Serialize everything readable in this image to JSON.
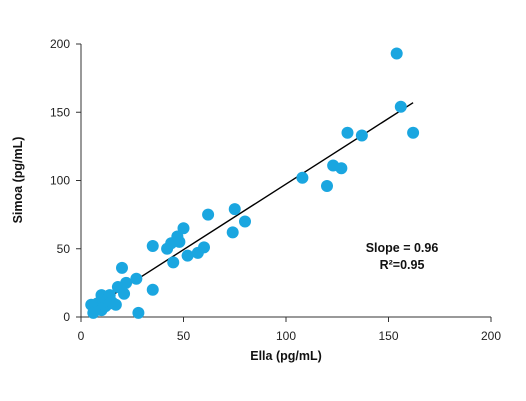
{
  "chart_data": {
    "type": "scatter",
    "xlabel": "Ella (pg/mL)",
    "ylabel": "Simoa (pg/mL)",
    "xlim": [
      0,
      200
    ],
    "ylim": [
      0,
      200
    ],
    "x_ticks": [
      0,
      50,
      100,
      150,
      200
    ],
    "y_ticks": [
      0,
      50,
      100,
      150,
      200
    ],
    "grid": false,
    "marker_color": "#1aa6e0",
    "line_color": "#000000",
    "points": [
      {
        "x": 5,
        "y": 9
      },
      {
        "x": 6,
        "y": 3
      },
      {
        "x": 8,
        "y": 10
      },
      {
        "x": 9,
        "y": 7
      },
      {
        "x": 10,
        "y": 5
      },
      {
        "x": 10,
        "y": 16
      },
      {
        "x": 11,
        "y": 12
      },
      {
        "x": 12,
        "y": 8
      },
      {
        "x": 13,
        "y": 13
      },
      {
        "x": 14,
        "y": 10
      },
      {
        "x": 14,
        "y": 16
      },
      {
        "x": 15,
        "y": 11
      },
      {
        "x": 17,
        "y": 9
      },
      {
        "x": 18,
        "y": 22
      },
      {
        "x": 20,
        "y": 36
      },
      {
        "x": 21,
        "y": 17
      },
      {
        "x": 22,
        "y": 25
      },
      {
        "x": 27,
        "y": 28
      },
      {
        "x": 28,
        "y": 3
      },
      {
        "x": 35,
        "y": 20
      },
      {
        "x": 35,
        "y": 52
      },
      {
        "x": 42,
        "y": 50
      },
      {
        "x": 44,
        "y": 54
      },
      {
        "x": 45,
        "y": 40
      },
      {
        "x": 47,
        "y": 59
      },
      {
        "x": 48,
        "y": 55
      },
      {
        "x": 50,
        "y": 65
      },
      {
        "x": 52,
        "y": 45
      },
      {
        "x": 57,
        "y": 47
      },
      {
        "x": 60,
        "y": 51
      },
      {
        "x": 62,
        "y": 75
      },
      {
        "x": 74,
        "y": 62
      },
      {
        "x": 75,
        "y": 79
      },
      {
        "x": 80,
        "y": 70
      },
      {
        "x": 108,
        "y": 102
      },
      {
        "x": 120,
        "y": 96
      },
      {
        "x": 123,
        "y": 111
      },
      {
        "x": 127,
        "y": 109
      },
      {
        "x": 130,
        "y": 135
      },
      {
        "x": 137,
        "y": 133
      },
      {
        "x": 154,
        "y": 193
      },
      {
        "x": 156,
        "y": 154
      },
      {
        "x": 162,
        "y": 135
      }
    ],
    "fit_line": {
      "x": [
        7,
        162
      ],
      "y": [
        8,
        157
      ]
    },
    "annotations": [
      "Slope = 0.96",
      "R²=0.95"
    ]
  }
}
